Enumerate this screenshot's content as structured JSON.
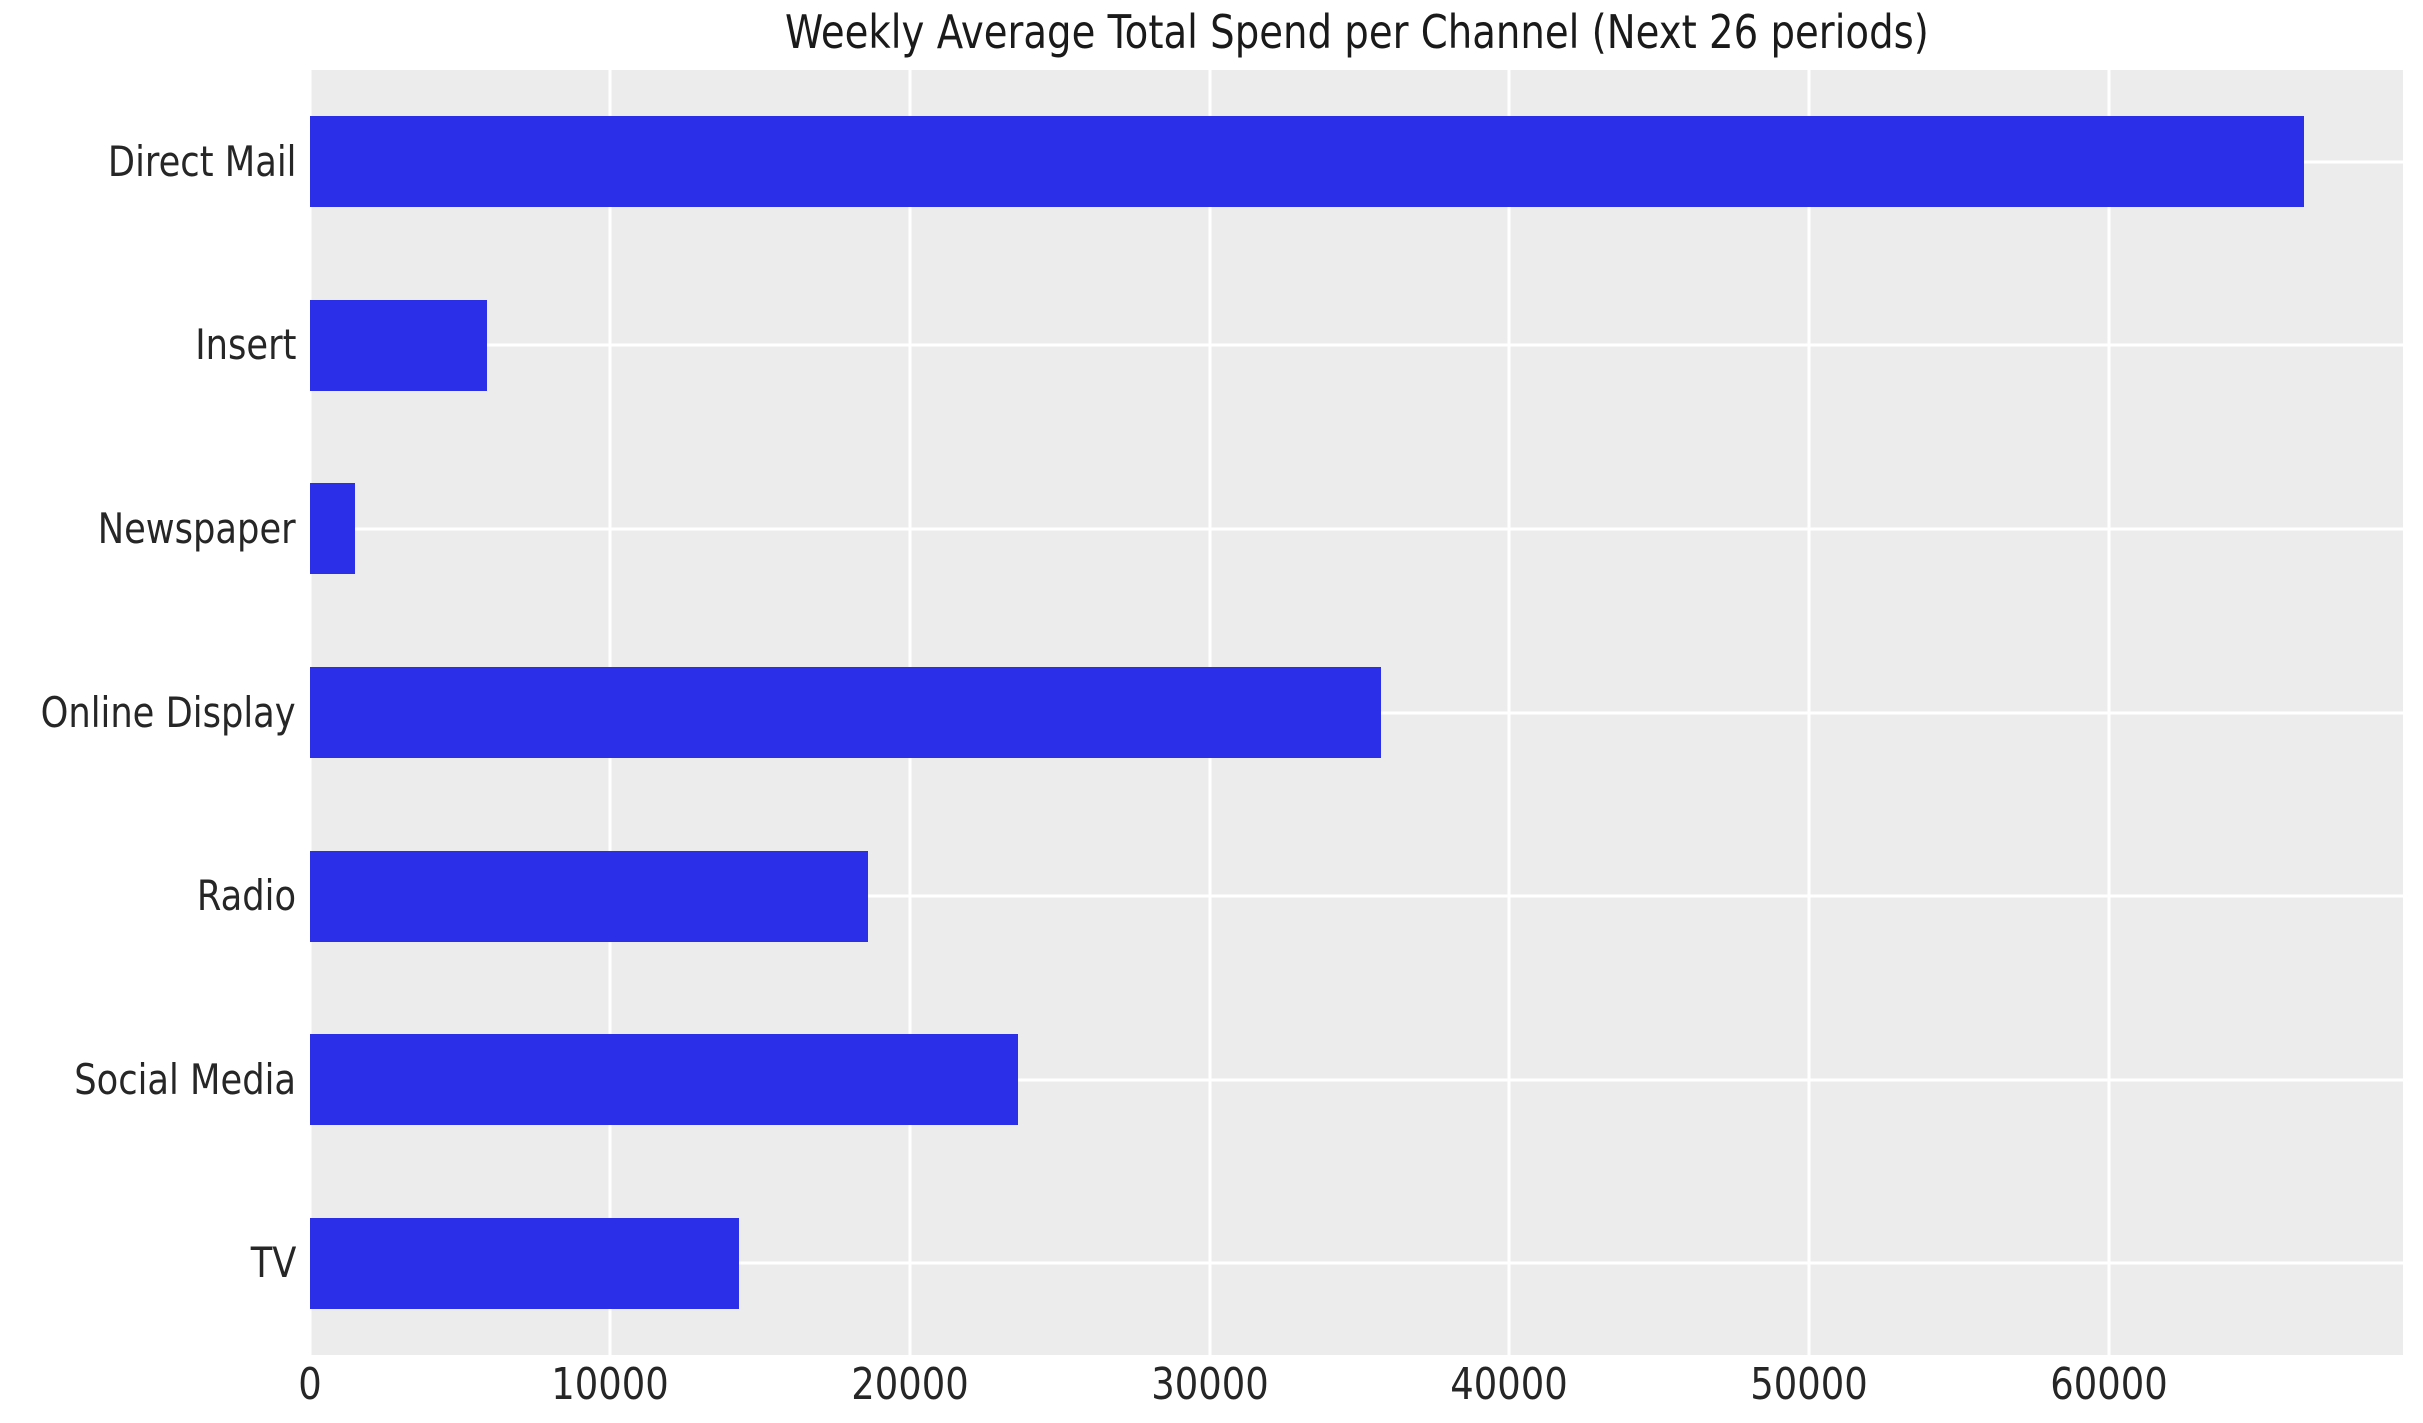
{
  "chart_data": {
    "type": "bar",
    "orientation": "horizontal",
    "title": "Weekly Average Total Spend per Channel (Next 26 periods)",
    "categories": [
      "Direct Mail",
      "Insert",
      "Newspaper",
      "Online Display",
      "Radio",
      "Social Media",
      "TV"
    ],
    "values": [
      66500,
      5900,
      1500,
      35700,
      18600,
      23600,
      14300
    ],
    "xlabel": "",
    "ylabel": "",
    "xlim": [
      0,
      69800
    ],
    "xticks": [
      0,
      10000,
      20000,
      30000,
      40000,
      50000,
      60000
    ],
    "grid": true,
    "legend": false,
    "colors": {
      "bar": "#2b2fe8",
      "plot_background": "#ececec",
      "figure_background": "#ffffff",
      "gridline": "#ffffff",
      "text": "#262626"
    }
  }
}
